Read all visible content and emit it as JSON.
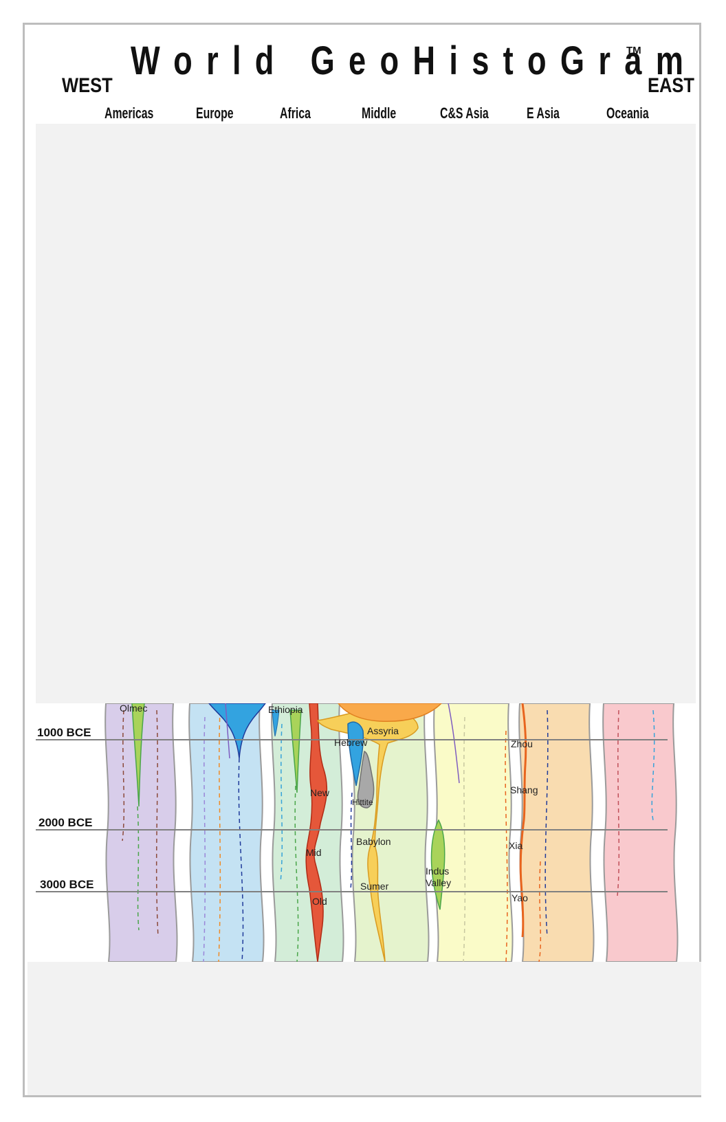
{
  "header": {
    "title": "World GeoHistoGram",
    "trademark": "TM",
    "west": "WEST",
    "east": "EAST"
  },
  "regions": [
    "Americas",
    "Europe",
    "Africa",
    "Middle",
    "C&S Asia",
    "E Asia",
    "Oceania"
  ],
  "time_markers": [
    "1000 BCE",
    "2000 BCE",
    "3000 BCE"
  ],
  "civilizations": {
    "olmec": "Olmec",
    "ethiopia": "Ethiopia",
    "assyria": "Assyria",
    "hebrew": "Hebrew",
    "new": "New",
    "hittite": "Hittite",
    "mid": "Mid",
    "babylon": "Babylon",
    "sumer": "Sumer",
    "old": "Old",
    "indus_1": "Indus",
    "indus_2": "Valley",
    "zhou": "Zhou",
    "shang": "Shang",
    "xia": "Xia",
    "yao": "Yao"
  },
  "colors": {
    "americas": "#d8cdea",
    "europe": "#c4e2f3",
    "africa": "#d3edd8",
    "middle": "#e5f3cd",
    "cs_asia": "#fafbc8",
    "e_asia": "#f9dcb0",
    "oceania": "#f9c9cd",
    "egypt": "#e5573a",
    "mesopotamia": "#f7cf59",
    "hebrew": "#33a3e0",
    "hittite": "#a8a8a8",
    "indus": "#a9d35a",
    "china": "#e8641e"
  }
}
